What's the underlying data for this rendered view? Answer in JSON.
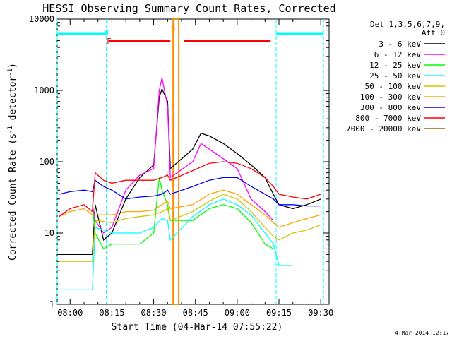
{
  "chart_data": {
    "type": "line",
    "title": "HESSI Observing Summary Count Rates, Corrected",
    "xlabel": "Start Time (04-Mar-14 07:55:22)",
    "ylabel": "Corrected Count Rate (s⁻¹ detector⁻¹)",
    "ylabel_main": "Corrected Count Rate (s",
    "ylabel_exp": "-1",
    "ylabel_mid": " detector",
    "ylabel_end": ")",
    "y_scale": "log",
    "xlim": [
      "07:55:22",
      "09:33:00"
    ],
    "ylim": [
      1,
      10000
    ],
    "x_ticks": [
      "08:00",
      "08:15",
      "08:30",
      "08:45",
      "09:00",
      "09:15",
      "09:30"
    ],
    "y_ticks": [
      "1",
      "10",
      "100",
      "1000",
      "10000"
    ],
    "legend_title": [
      "Det 1,3,5,6,7,9,",
      "Att 0"
    ],
    "legend_placement": "top-right outside",
    "series": [
      {
        "name": "3 - 6 keV",
        "color": "#000000",
        "x": [
          "07:56",
          "08:05",
          "08:08",
          "08:09",
          "08:12",
          "08:15",
          "08:20",
          "08:25",
          "08:30",
          "08:32",
          "08:33",
          "08:35",
          "08:36",
          "08:44",
          "08:47",
          "08:50",
          "08:55",
          "09:00",
          "09:05",
          "09:10",
          "09:13",
          "09:15",
          "09:20",
          "09:25",
          "09:30"
        ],
        "y": [
          5,
          5,
          5,
          25,
          8,
          10,
          30,
          60,
          90,
          800,
          1050,
          700,
          80,
          150,
          250,
          230,
          180,
          130,
          90,
          60,
          35,
          25,
          22,
          25,
          30
        ]
      },
      {
        "name": "6 - 12 keV",
        "color": "#ff00ff",
        "x": [
          "08:08",
          "08:09",
          "08:12",
          "08:15",
          "08:20",
          "08:25",
          "08:30",
          "08:32",
          "08:33",
          "08:35",
          "08:36",
          "08:44",
          "08:47",
          "08:50",
          "08:55",
          "09:00",
          "09:05",
          "09:10",
          "09:13"
        ],
        "y": [
          25,
          15,
          10,
          12,
          40,
          65,
          80,
          1000,
          1500,
          600,
          60,
          100,
          180,
          150,
          110,
          80,
          30,
          20,
          15
        ]
      },
      {
        "name": "12 - 25 keV",
        "color": "#00ff00",
        "x": [
          "08:08",
          "08:09",
          "08:12",
          "08:15",
          "08:20",
          "08:25",
          "08:30",
          "08:32",
          "08:33",
          "08:35",
          "08:36",
          "08:44",
          "08:50",
          "08:55",
          "09:00",
          "09:05",
          "09:10",
          "09:13"
        ],
        "y": [
          25,
          10,
          6,
          7,
          7,
          7,
          10,
          60,
          40,
          25,
          15,
          15,
          22,
          25,
          22,
          14,
          7,
          6
        ]
      },
      {
        "name": "25 - 50 keV",
        "color": "#00ffff",
        "x": [
          "07:56",
          "08:05",
          "08:08",
          "08:09",
          "08:15",
          "08:20",
          "08:25",
          "08:30",
          "08:33",
          "08:35",
          "08:36",
          "08:44",
          "08:50",
          "08:55",
          "09:00",
          "09:05",
          "09:10",
          "09:13",
          "09:15",
          "09:20"
        ],
        "y": [
          1.6,
          1.6,
          1.6,
          12,
          10,
          10,
          10,
          12,
          16,
          15,
          8,
          17,
          25,
          30,
          25,
          18,
          10,
          7,
          3.5,
          3.5
        ]
      },
      {
        "name": "50 - 100 keV",
        "color": "#d2c500",
        "x": [
          "07:56",
          "08:05",
          "08:08",
          "08:09",
          "08:15",
          "08:20",
          "08:25",
          "08:30",
          "08:33",
          "08:35",
          "08:36",
          "08:44",
          "08:50",
          "08:55",
          "09:00",
          "09:05",
          "09:10",
          "09:13",
          "09:15",
          "09:20",
          "09:25",
          "09:30"
        ],
        "y": [
          4,
          4,
          4,
          15,
          14,
          16,
          17,
          18,
          20,
          22,
          15,
          20,
          28,
          35,
          30,
          20,
          12,
          9,
          8,
          10,
          11,
          13
        ]
      },
      {
        "name": "100 - 300 keV",
        "color": "#ffa500",
        "x": [
          "07:56",
          "08:00",
          "08:05",
          "08:08",
          "08:09",
          "08:15",
          "08:20",
          "08:25",
          "08:30",
          "08:33",
          "08:35",
          "08:36",
          "08:44",
          "08:50",
          "08:55",
          "09:00",
          "09:05",
          "09:10",
          "09:13",
          "09:15",
          "09:20",
          "09:25",
          "09:30"
        ],
        "y": [
          17,
          20,
          22,
          18,
          18,
          18,
          20,
          20,
          21,
          25,
          28,
          22,
          25,
          35,
          40,
          35,
          25,
          18,
          14,
          12,
          14,
          16,
          18
        ]
      },
      {
        "name": "300 - 800 keV",
        "color": "#0000ff",
        "x": [
          "07:56",
          "08:00",
          "08:05",
          "08:08",
          "08:09",
          "08:12",
          "08:15",
          "08:20",
          "08:25",
          "08:30",
          "08:33",
          "08:35",
          "08:36",
          "08:44",
          "08:50",
          "08:55",
          "09:00",
          "09:05",
          "09:10",
          "09:13",
          "09:15",
          "09:20",
          "09:25",
          "09:30"
        ],
        "y": [
          35,
          38,
          40,
          38,
          55,
          45,
          40,
          30,
          32,
          33,
          35,
          40,
          35,
          45,
          55,
          60,
          60,
          45,
          35,
          30,
          25,
          25,
          24,
          24
        ]
      },
      {
        "name": "800 - 7000 keV",
        "color": "#ff0000",
        "x": [
          "07:56",
          "08:00",
          "08:05",
          "08:08",
          "08:09",
          "08:12",
          "08:15",
          "08:20",
          "08:25",
          "08:30",
          "08:33",
          "08:35",
          "08:36",
          "08:44",
          "08:50",
          "08:55",
          "09:00",
          "09:05",
          "09:10",
          "09:13",
          "09:15",
          "09:20",
          "09:25",
          "09:30"
        ],
        "y": [
          17,
          22,
          25,
          20,
          70,
          55,
          50,
          55,
          55,
          55,
          60,
          65,
          55,
          75,
          95,
          100,
          95,
          80,
          60,
          45,
          35,
          32,
          30,
          35
        ]
      },
      {
        "name": "7000 - 20000 keV",
        "color": "#8b6b00",
        "x": [],
        "y": []
      }
    ],
    "annotations": [
      {
        "label": "N",
        "color": "#00ffff",
        "x": "08:13"
      },
      {
        "label": "F",
        "color": "#ff0000",
        "x": "08:14"
      },
      {
        "label": "S",
        "color": "#ff8c00",
        "x": "08:37"
      }
    ],
    "flags": [
      {
        "name": "night",
        "color": "#00ffff",
        "segments": [
          [
            "07:55:22",
            "08:13"
          ],
          [
            "09:14",
            "09:31"
          ]
        ]
      },
      {
        "name": "flare",
        "color": "#ff0000",
        "segments": [
          [
            "08:14",
            "08:36"
          ],
          [
            "08:41",
            "09:12"
          ]
        ]
      },
      {
        "name": "saa",
        "color": "#ff8c00",
        "segments": [
          [
            "08:37",
            "08:39"
          ]
        ]
      }
    ],
    "grid": false
  },
  "footer": {
    "date_stamp": "4-Mar-2014 12:17"
  }
}
